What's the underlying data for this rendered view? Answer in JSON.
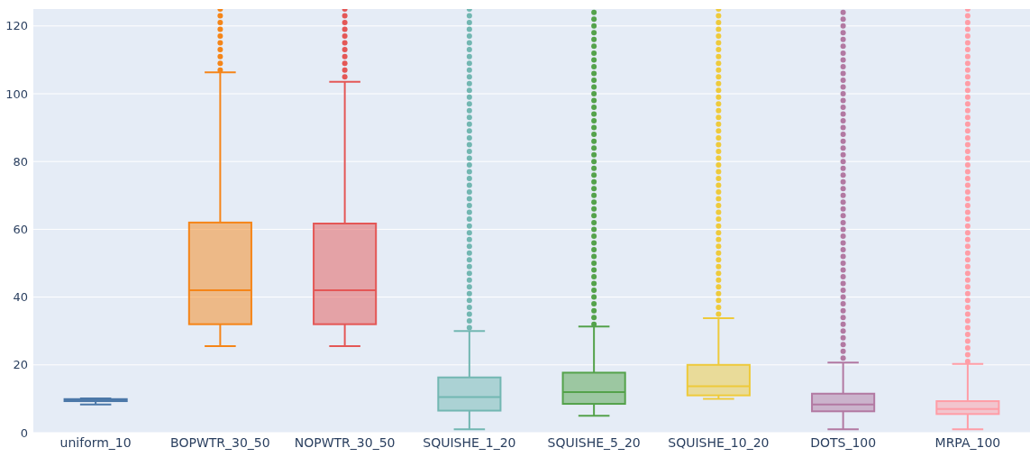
{
  "chart_data": {
    "type": "box",
    "categories": [
      "uniform_10",
      "BOPWTR_30_50",
      "NOPWTR_30_50",
      "SQUISHE_1_20",
      "SQUISHE_5_20",
      "SQUISHE_10_20",
      "DOTS_100",
      "MRPA_100"
    ],
    "colors": [
      "#4c78a8",
      "#f58518",
      "#e45756",
      "#72b7b2",
      "#54a24b",
      "#eeca3b",
      "#b279a2",
      "#ff9da6"
    ],
    "boxes": [
      {
        "low": 8.3,
        "q1": 9.3,
        "median": 9.6,
        "q3": 9.9,
        "high": 10.1
      },
      {
        "low": 25.5,
        "q1": 32,
        "median": 42,
        "q3": 62,
        "high": 106.3,
        "outliers": [
          107,
          109,
          111,
          113,
          115,
          117,
          119,
          121,
          123,
          125
        ]
      },
      {
        "low": 25.5,
        "q1": 32,
        "median": 42,
        "q3": 61.7,
        "high": 103.5,
        "outliers": [
          105,
          107,
          109,
          111,
          113,
          115,
          117,
          119,
          121,
          123,
          125
        ]
      },
      {
        "low": 1,
        "q1": 6.5,
        "median": 10.5,
        "q3": 16.3,
        "high": 30,
        "outliers": [
          31,
          33,
          35,
          37,
          39,
          41,
          43,
          45,
          47,
          49,
          51,
          53,
          55,
          57,
          59,
          61,
          63,
          65,
          67,
          69,
          71,
          73,
          75,
          77,
          79,
          81,
          83,
          85,
          87,
          89,
          91,
          93,
          95,
          97,
          99,
          101,
          103,
          105,
          107,
          109,
          111,
          113,
          115,
          117,
          119,
          121,
          123,
          125
        ]
      },
      {
        "low": 5,
        "q1": 8.5,
        "median": 12,
        "q3": 17.7,
        "high": 31.3,
        "outliers": [
          32,
          34,
          36,
          38,
          40,
          42,
          44,
          46,
          48,
          50,
          52,
          54,
          56,
          58,
          60,
          62,
          64,
          66,
          68,
          70,
          72,
          74,
          76,
          78,
          80,
          82,
          84,
          86,
          88,
          90,
          92,
          94,
          96,
          98,
          100,
          102,
          104,
          106,
          108,
          110,
          112,
          114,
          116,
          118,
          120,
          122,
          124
        ]
      },
      {
        "low": 10,
        "q1": 11,
        "median": 13.7,
        "q3": 20,
        "high": 33.8,
        "outliers": [
          35,
          37,
          39,
          41,
          43,
          45,
          47,
          49,
          51,
          53,
          55,
          57,
          59,
          61,
          63,
          65,
          67,
          69,
          71,
          73,
          75,
          77,
          79,
          81,
          83,
          85,
          87,
          89,
          91,
          93,
          95,
          97,
          99,
          101,
          103,
          105,
          107,
          109,
          111,
          113,
          115,
          117,
          119,
          121,
          123,
          125
        ]
      },
      {
        "low": 1,
        "q1": 6.3,
        "median": 8.3,
        "q3": 11.5,
        "high": 20.7,
        "outliers": [
          22,
          24,
          26,
          28,
          30,
          32,
          34,
          36,
          38,
          40,
          42,
          44,
          46,
          48,
          50,
          52,
          54,
          56,
          58,
          60,
          62,
          64,
          66,
          68,
          70,
          72,
          74,
          76,
          78,
          80,
          82,
          84,
          86,
          88,
          90,
          92,
          94,
          96,
          98,
          100,
          102,
          104,
          106,
          108,
          110,
          112,
          114,
          116,
          118,
          120,
          122,
          124
        ]
      },
      {
        "low": 1,
        "q1": 5.5,
        "median": 7,
        "q3": 9.3,
        "high": 20.3,
        "outliers": [
          21,
          23,
          25,
          27,
          29,
          31,
          33,
          35,
          37,
          39,
          41,
          43,
          45,
          47,
          49,
          51,
          53,
          55,
          57,
          59,
          61,
          63,
          65,
          67,
          69,
          71,
          73,
          75,
          77,
          79,
          81,
          83,
          85,
          87,
          89,
          91,
          93,
          95,
          97,
          99,
          101,
          103,
          105,
          107,
          109,
          111,
          113,
          115,
          117,
          119,
          121,
          123,
          125
        ]
      }
    ],
    "ylim": [
      0,
      125
    ],
    "yticks": [
      0,
      20,
      40,
      60,
      80,
      100,
      120
    ],
    "grid": "y"
  }
}
